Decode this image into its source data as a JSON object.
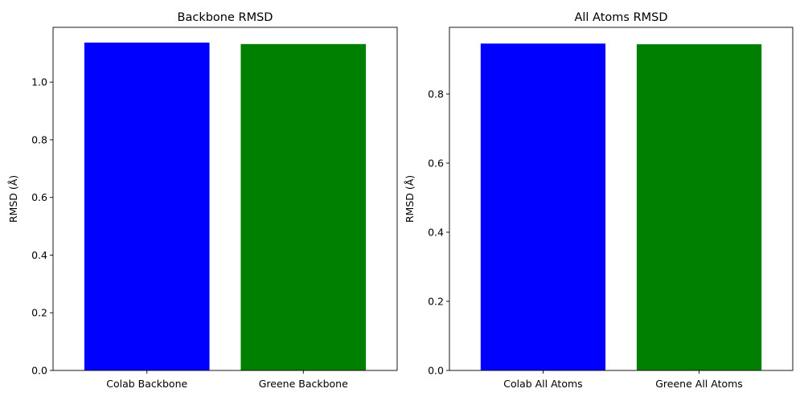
{
  "chart_data": [
    {
      "type": "bar",
      "title": "Backbone RMSD",
      "xlabel": "",
      "ylabel": "RMSD (Å)",
      "categories": [
        "Colab Backbone",
        "Greene Backbone"
      ],
      "values": [
        1.137,
        1.132
      ],
      "colors": [
        "#0000ff",
        "#008000"
      ],
      "ylim": [
        0,
        1.19
      ],
      "yticks": [
        0.0,
        0.2,
        0.4,
        0.6,
        0.8,
        1.0
      ],
      "grid": false,
      "legend": "none"
    },
    {
      "type": "bar",
      "title": "All Atoms RMSD",
      "xlabel": "",
      "ylabel": "RMSD (Å)",
      "categories": [
        "Colab All Atoms",
        "Greene All Atoms"
      ],
      "values": [
        0.946,
        0.944
      ],
      "colors": [
        "#0000ff",
        "#008000"
      ],
      "ylim": [
        0,
        0.993
      ],
      "yticks": [
        0.0,
        0.2,
        0.4,
        0.6,
        0.8
      ],
      "grid": false,
      "legend": "none"
    }
  ]
}
